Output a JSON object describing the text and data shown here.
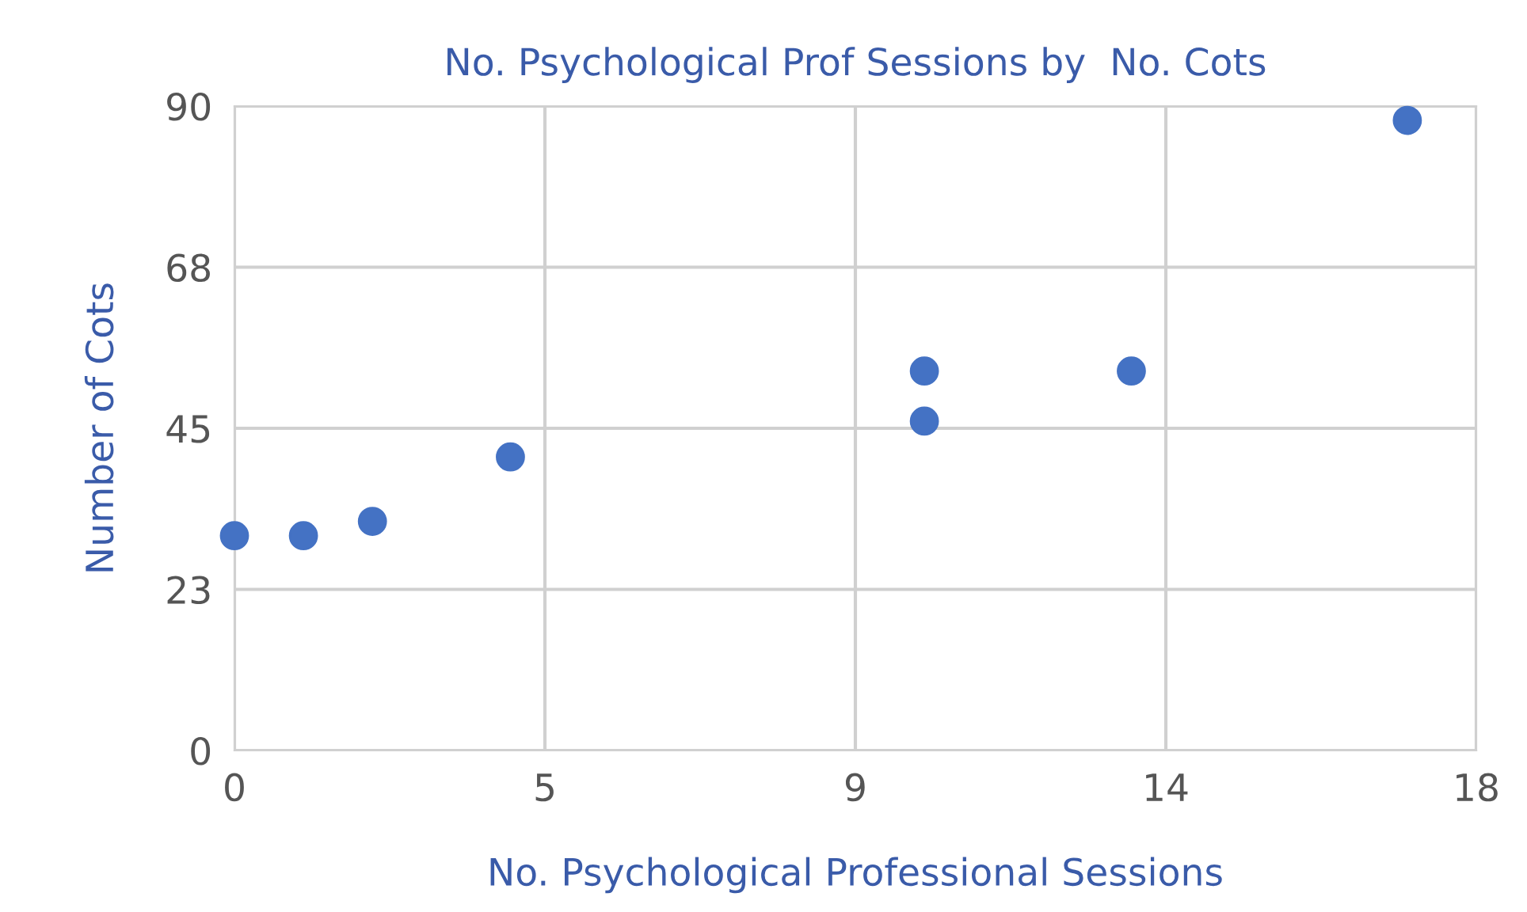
{
  "chart_data": {
    "type": "scatter",
    "title": "No. Psychological Prof Sessions by  No. Cots",
    "xlabel": "No. Psychological Professional Sessions",
    "ylabel": "Number of Cots",
    "x": [
      0,
      1,
      2,
      4,
      10,
      10,
      13,
      17
    ],
    "series": [
      {
        "color": "#4472c4",
        "values": [
          30,
          30,
          32,
          41,
          53,
          46,
          53,
          88
        ]
      }
    ],
    "xlim": [
      0,
      18
    ],
    "xticks": [
      0,
      {
        "value": 4.5,
        "label": "5"
      },
      9,
      {
        "value": 13.5,
        "label": "14"
      },
      18
    ],
    "ylim": [
      0,
      90
    ],
    "yticks": [
      0,
      {
        "value": 22.5,
        "label": "23"
      },
      45,
      {
        "value": 67.5,
        "label": "68"
      },
      90
    ],
    "grid": true,
    "marker": "circle"
  }
}
